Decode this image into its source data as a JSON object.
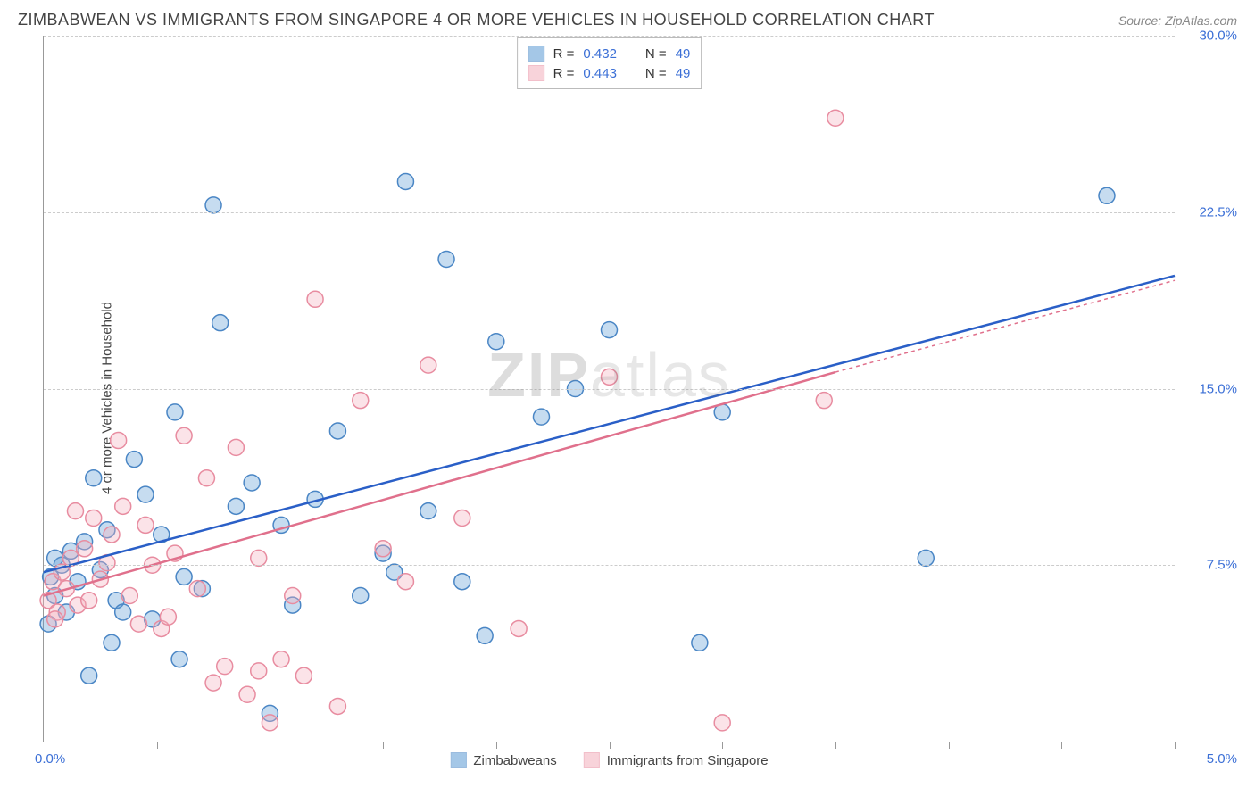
{
  "title": "ZIMBABWEAN VS IMMIGRANTS FROM SINGAPORE 4 OR MORE VEHICLES IN HOUSEHOLD CORRELATION CHART",
  "source": "Source: ZipAtlas.com",
  "ylabel": "4 or more Vehicles in Household",
  "watermark_zip": "ZIP",
  "watermark_atlas": "atlas",
  "chart": {
    "type": "scatter",
    "background_color": "#ffffff",
    "grid_color": "#cccccc",
    "axis_color": "#999999",
    "label_color": "#444444",
    "tick_label_color": "#3b6fd6",
    "title_fontsize": 18,
    "label_fontsize": 15,
    "xlim": [
      0.0,
      5.0
    ],
    "ylim": [
      0.0,
      30.0
    ],
    "yticks": [
      7.5,
      15.0,
      22.5,
      30.0
    ],
    "ytick_labels": [
      "7.5%",
      "15.0%",
      "22.5%",
      "30.0%"
    ],
    "xtick_positions": [
      0.5,
      1.0,
      1.5,
      2.0,
      2.5,
      3.0,
      3.5,
      4.0,
      4.5,
      5.0
    ],
    "xaxis_start_label": "0.0%",
    "xaxis_end_label": "5.0%",
    "marker_radius": 9,
    "marker_fill_opacity": 0.35,
    "marker_stroke_width": 1.5,
    "line_width": 2.5,
    "series": [
      {
        "name": "Zimbabweans",
        "color": "#5b9bd5",
        "stroke": "#4a86c5",
        "line_color": "#2a5fc7",
        "line_dash": "none",
        "line_dash_ext": "none",
        "R": "0.432",
        "N": "49",
        "regression": {
          "x1": 0.0,
          "y1": 7.2,
          "x2": 5.0,
          "y2": 19.8
        },
        "points": [
          [
            0.02,
            5.0
          ],
          [
            0.03,
            7.0
          ],
          [
            0.05,
            6.2
          ],
          [
            0.08,
            7.5
          ],
          [
            0.1,
            5.5
          ],
          [
            0.12,
            8.1
          ],
          [
            0.15,
            6.8
          ],
          [
            0.18,
            8.5
          ],
          [
            0.2,
            2.8
          ],
          [
            0.22,
            11.2
          ],
          [
            0.25,
            7.3
          ],
          [
            0.28,
            9.0
          ],
          [
            0.3,
            4.2
          ],
          [
            0.32,
            6.0
          ],
          [
            0.4,
            12.0
          ],
          [
            0.45,
            10.5
          ],
          [
            0.48,
            5.2
          ],
          [
            0.52,
            8.8
          ],
          [
            0.58,
            14.0
          ],
          [
            0.62,
            7.0
          ],
          [
            0.7,
            6.5
          ],
          [
            0.75,
            22.8
          ],
          [
            0.78,
            17.8
          ],
          [
            0.85,
            10.0
          ],
          [
            0.92,
            11.0
          ],
          [
            1.0,
            1.2
          ],
          [
            1.05,
            9.2
          ],
          [
            1.1,
            5.8
          ],
          [
            1.2,
            10.3
          ],
          [
            1.3,
            13.2
          ],
          [
            1.4,
            6.2
          ],
          [
            1.5,
            8.0
          ],
          [
            1.6,
            23.8
          ],
          [
            1.7,
            9.8
          ],
          [
            1.78,
            20.5
          ],
          [
            1.85,
            6.8
          ],
          [
            1.95,
            4.5
          ],
          [
            2.0,
            17.0
          ],
          [
            2.2,
            13.8
          ],
          [
            2.35,
            15.0
          ],
          [
            2.5,
            17.5
          ],
          [
            2.9,
            4.2
          ],
          [
            3.0,
            14.0
          ],
          [
            3.9,
            7.8
          ],
          [
            4.7,
            23.2
          ],
          [
            0.05,
            7.8
          ],
          [
            0.6,
            3.5
          ],
          [
            1.55,
            7.2
          ],
          [
            0.35,
            5.5
          ]
        ]
      },
      {
        "name": "Immigrants from Singapore",
        "color": "#f4b0bd",
        "stroke": "#e88ca0",
        "line_color": "#e0708c",
        "line_dash": "none",
        "line_dash_ext": "4 4",
        "R": "0.443",
        "N": "49",
        "regression": {
          "x1": 0.0,
          "y1": 6.2,
          "x2": 3.5,
          "y2": 15.7
        },
        "regression_ext": {
          "x1": 3.5,
          "y1": 15.7,
          "x2": 5.0,
          "y2": 19.6
        },
        "points": [
          [
            0.02,
            6.0
          ],
          [
            0.04,
            6.8
          ],
          [
            0.06,
            5.5
          ],
          [
            0.08,
            7.2
          ],
          [
            0.1,
            6.5
          ],
          [
            0.12,
            7.8
          ],
          [
            0.15,
            5.8
          ],
          [
            0.18,
            8.2
          ],
          [
            0.2,
            6.0
          ],
          [
            0.22,
            9.5
          ],
          [
            0.25,
            6.9
          ],
          [
            0.28,
            7.6
          ],
          [
            0.3,
            8.8
          ],
          [
            0.35,
            10.0
          ],
          [
            0.38,
            6.2
          ],
          [
            0.42,
            5.0
          ],
          [
            0.45,
            9.2
          ],
          [
            0.48,
            7.5
          ],
          [
            0.52,
            4.8
          ],
          [
            0.58,
            8.0
          ],
          [
            0.62,
            13.0
          ],
          [
            0.68,
            6.5
          ],
          [
            0.75,
            2.5
          ],
          [
            0.8,
            3.2
          ],
          [
            0.85,
            12.5
          ],
          [
            0.9,
            2.0
          ],
          [
            0.95,
            7.8
          ],
          [
            1.0,
            0.8
          ],
          [
            1.05,
            3.5
          ],
          [
            1.1,
            6.2
          ],
          [
            1.15,
            2.8
          ],
          [
            1.2,
            18.8
          ],
          [
            1.3,
            1.5
          ],
          [
            1.4,
            14.5
          ],
          [
            1.5,
            8.2
          ],
          [
            1.6,
            6.8
          ],
          [
            1.7,
            16.0
          ],
          [
            1.85,
            9.5
          ],
          [
            2.1,
            4.8
          ],
          [
            2.5,
            15.5
          ],
          [
            3.0,
            0.8
          ],
          [
            3.5,
            26.5
          ],
          [
            3.45,
            14.5
          ],
          [
            0.05,
            5.2
          ],
          [
            0.14,
            9.8
          ],
          [
            0.55,
            5.3
          ],
          [
            0.72,
            11.2
          ],
          [
            0.33,
            12.8
          ],
          [
            0.95,
            3.0
          ]
        ]
      }
    ],
    "stats_legend": {
      "R_label": "R =",
      "N_label": "N ="
    },
    "series_legend_label_1": "Zimbabweans",
    "series_legend_label_2": "Immigrants from Singapore"
  }
}
